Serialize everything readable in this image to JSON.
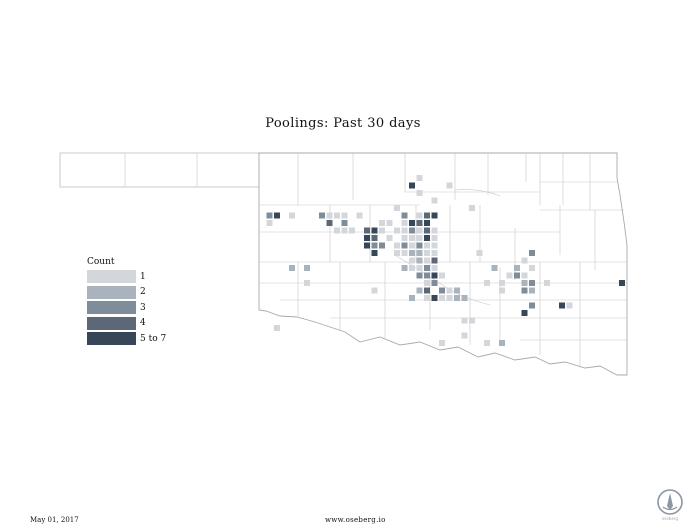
{
  "title": "Poolings: Past 30 days",
  "legend": {
    "title": "Count",
    "items": [
      {
        "label": "1",
        "color": "#d3d7dc"
      },
      {
        "label": "2",
        "color": "#a9b3bd"
      },
      {
        "label": "3",
        "color": "#7f8c99"
      },
      {
        "label": "4",
        "color": "#5a6878"
      },
      {
        "label": "5 to 7",
        "color": "#374758"
      }
    ]
  },
  "cells": [
    {
      "col": 21,
      "row": 2,
      "v": 1
    },
    {
      "col": 20,
      "row": 3,
      "v": 5
    },
    {
      "col": 25,
      "row": 3,
      "v": 1
    },
    {
      "col": 21,
      "row": 4,
      "v": 1
    },
    {
      "col": 23,
      "row": 5,
      "v": 1
    },
    {
      "col": 18,
      "row": 6,
      "v": 1
    },
    {
      "col": 28,
      "row": 6,
      "v": 1
    },
    {
      "col": 1,
      "row": 7,
      "v": 3
    },
    {
      "col": 2,
      "row": 7,
      "v": 5
    },
    {
      "col": 4,
      "row": 7,
      "v": 1
    },
    {
      "col": 8,
      "row": 7,
      "v": 3
    },
    {
      "col": 9,
      "row": 7,
      "v": 1
    },
    {
      "col": 10,
      "row": 7,
      "v": 1
    },
    {
      "col": 11,
      "row": 7,
      "v": 1
    },
    {
      "col": 13,
      "row": 7,
      "v": 1
    },
    {
      "col": 19,
      "row": 7,
      "v": 3
    },
    {
      "col": 21,
      "row": 7,
      "v": 1
    },
    {
      "col": 22,
      "row": 7,
      "v": 4
    },
    {
      "col": 23,
      "row": 7,
      "v": 5
    },
    {
      "col": 1,
      "row": 8,
      "v": 1
    },
    {
      "col": 9,
      "row": 8,
      "v": 4
    },
    {
      "col": 11,
      "row": 8,
      "v": 3
    },
    {
      "col": 16,
      "row": 8,
      "v": 1
    },
    {
      "col": 17,
      "row": 8,
      "v": 1
    },
    {
      "col": 19,
      "row": 8,
      "v": 1
    },
    {
      "col": 20,
      "row": 8,
      "v": 5
    },
    {
      "col": 21,
      "row": 8,
      "v": 4
    },
    {
      "col": 22,
      "row": 8,
      "v": 5
    },
    {
      "col": 10,
      "row": 9,
      "v": 1
    },
    {
      "col": 11,
      "row": 9,
      "v": 1
    },
    {
      "col": 12,
      "row": 9,
      "v": 1
    },
    {
      "col": 14,
      "row": 9,
      "v": 4
    },
    {
      "col": 15,
      "row": 9,
      "v": 5
    },
    {
      "col": 16,
      "row": 9,
      "v": 1
    },
    {
      "col": 18,
      "row": 9,
      "v": 1
    },
    {
      "col": 19,
      "row": 9,
      "v": 1
    },
    {
      "col": 20,
      "row": 9,
      "v": 3
    },
    {
      "col": 21,
      "row": 9,
      "v": 1
    },
    {
      "col": 22,
      "row": 9,
      "v": 4
    },
    {
      "col": 23,
      "row": 9,
      "v": 1
    },
    {
      "col": 14,
      "row": 10,
      "v": 5
    },
    {
      "col": 15,
      "row": 10,
      "v": 4
    },
    {
      "col": 17,
      "row": 10,
      "v": 1
    },
    {
      "col": 19,
      "row": 10,
      "v": 1
    },
    {
      "col": 20,
      "row": 10,
      "v": 1
    },
    {
      "col": 21,
      "row": 10,
      "v": 1
    },
    {
      "col": 22,
      "row": 10,
      "v": 5
    },
    {
      "col": 23,
      "row": 10,
      "v": 1
    },
    {
      "col": 14,
      "row": 11,
      "v": 5
    },
    {
      "col": 15,
      "row": 11,
      "v": 3
    },
    {
      "col": 16,
      "row": 11,
      "v": 3
    },
    {
      "col": 18,
      "row": 11,
      "v": 1
    },
    {
      "col": 19,
      "row": 11,
      "v": 3
    },
    {
      "col": 20,
      "row": 11,
      "v": 1
    },
    {
      "col": 21,
      "row": 11,
      "v": 3
    },
    {
      "col": 22,
      "row": 11,
      "v": 1
    },
    {
      "col": 23,
      "row": 11,
      "v": 1
    },
    {
      "col": 15,
      "row": 12,
      "v": 5
    },
    {
      "col": 18,
      "row": 12,
      "v": 1
    },
    {
      "col": 19,
      "row": 12,
      "v": 1
    },
    {
      "col": 20,
      "row": 12,
      "v": 2
    },
    {
      "col": 21,
      "row": 12,
      "v": 2
    },
    {
      "col": 22,
      "row": 12,
      "v": 1
    },
    {
      "col": 23,
      "row": 12,
      "v": 1
    },
    {
      "col": 29,
      "row": 12,
      "v": 1
    },
    {
      "col": 36,
      "row": 12,
      "v": 3
    },
    {
      "col": 20,
      "row": 13,
      "v": 1
    },
    {
      "col": 21,
      "row": 13,
      "v": 2
    },
    {
      "col": 22,
      "row": 13,
      "v": 1
    },
    {
      "col": 23,
      "row": 13,
      "v": 4
    },
    {
      "col": 35,
      "row": 13,
      "v": 1
    },
    {
      "col": 4,
      "row": 14,
      "v": 2
    },
    {
      "col": 6,
      "row": 14,
      "v": 2
    },
    {
      "col": 19,
      "row": 14,
      "v": 2
    },
    {
      "col": 20,
      "row": 14,
      "v": 1
    },
    {
      "col": 21,
      "row": 14,
      "v": 1
    },
    {
      "col": 22,
      "row": 14,
      "v": 3
    },
    {
      "col": 23,
      "row": 14,
      "v": 1
    },
    {
      "col": 31,
      "row": 14,
      "v": 2
    },
    {
      "col": 34,
      "row": 14,
      "v": 2
    },
    {
      "col": 36,
      "row": 14,
      "v": 1
    },
    {
      "col": 21,
      "row": 15,
      "v": 3
    },
    {
      "col": 22,
      "row": 15,
      "v": 3
    },
    {
      "col": 23,
      "row": 15,
      "v": 5
    },
    {
      "col": 24,
      "row": 15,
      "v": 1
    },
    {
      "col": 33,
      "row": 15,
      "v": 1
    },
    {
      "col": 34,
      "row": 15,
      "v": 3
    },
    {
      "col": 35,
      "row": 15,
      "v": 1
    },
    {
      "col": 6,
      "row": 16,
      "v": 1
    },
    {
      "col": 22,
      "row": 16,
      "v": 1
    },
    {
      "col": 23,
      "row": 16,
      "v": 3
    },
    {
      "col": 30,
      "row": 16,
      "v": 1
    },
    {
      "col": 32,
      "row": 16,
      "v": 1
    },
    {
      "col": 35,
      "row": 16,
      "v": 2
    },
    {
      "col": 36,
      "row": 16,
      "v": 3
    },
    {
      "col": 38,
      "row": 16,
      "v": 1
    },
    {
      "col": 48,
      "row": 16,
      "v": 5
    },
    {
      "col": 15,
      "row": 17,
      "v": 1
    },
    {
      "col": 21,
      "row": 17,
      "v": 2
    },
    {
      "col": 22,
      "row": 17,
      "v": 4
    },
    {
      "col": 24,
      "row": 17,
      "v": 3
    },
    {
      "col": 25,
      "row": 17,
      "v": 1
    },
    {
      "col": 26,
      "row": 17,
      "v": 2
    },
    {
      "col": 32,
      "row": 17,
      "v": 1
    },
    {
      "col": 35,
      "row": 17,
      "v": 3
    },
    {
      "col": 36,
      "row": 17,
      "v": 2
    },
    {
      "col": 20,
      "row": 18,
      "v": 2
    },
    {
      "col": 22,
      "row": 18,
      "v": 1
    },
    {
      "col": 23,
      "row": 18,
      "v": 5
    },
    {
      "col": 24,
      "row": 18,
      "v": 1
    },
    {
      "col": 25,
      "row": 18,
      "v": 1
    },
    {
      "col": 26,
      "row": 18,
      "v": 2
    },
    {
      "col": 27,
      "row": 18,
      "v": 2
    },
    {
      "col": 36,
      "row": 19,
      "v": 3
    },
    {
      "col": 40,
      "row": 19,
      "v": 5
    },
    {
      "col": 41,
      "row": 19,
      "v": 1
    },
    {
      "col": 35,
      "row": 20,
      "v": 5
    },
    {
      "col": 27,
      "row": 21,
      "v": 1
    },
    {
      "col": 28,
      "row": 21,
      "v": 1
    },
    {
      "col": 2,
      "row": 22,
      "v": 1
    },
    {
      "col": 27,
      "row": 23,
      "v": 1
    },
    {
      "col": 24,
      "row": 24,
      "v": 1
    },
    {
      "col": 30,
      "row": 24,
      "v": 1
    },
    {
      "col": 32,
      "row": 24,
      "v": 2
    }
  ],
  "footer": {
    "date": "May 01, 2017",
    "url": "www.oseberg.io"
  },
  "brand": {
    "name": "oseberg",
    "color": "#8a96a3"
  }
}
